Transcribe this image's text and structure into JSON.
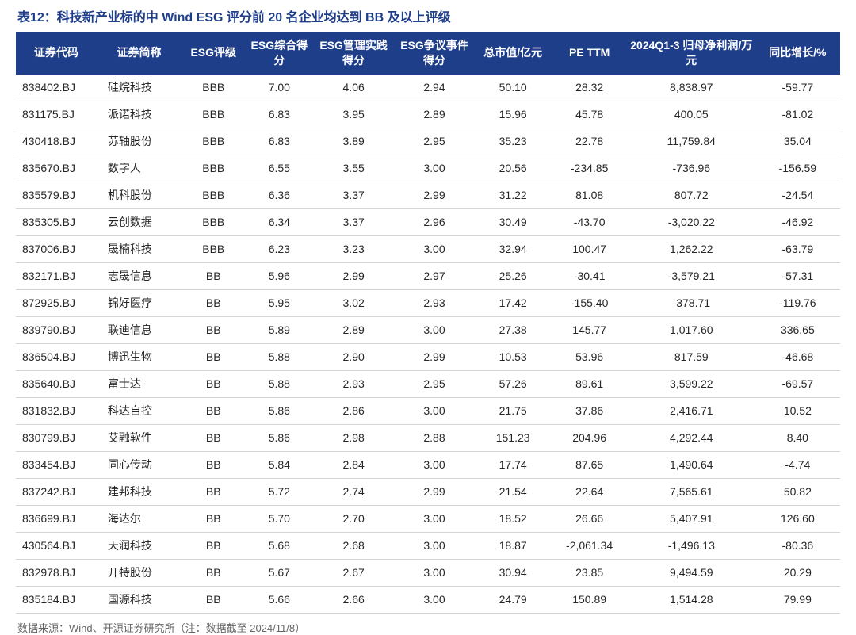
{
  "title": "表12：科技新产业标的中 Wind ESG 评分前 20 名企业均达到 BB 及以上评级",
  "footer": "数据来源：Wind、开源证券研究所（注：数据截至 2024/11/8）",
  "colors": {
    "header_bg": "#1f3e8a",
    "header_text": "#ffffff",
    "title_text": "#1f3e8a",
    "body_text": "#262626",
    "row_border": "#d4d4d4",
    "footer_text": "#666666",
    "background": "#ffffff"
  },
  "typography": {
    "title_fontsize": 16,
    "header_fontsize": 14,
    "cell_fontsize": 14,
    "footer_fontsize": 13,
    "font_family": "Microsoft YaHei"
  },
  "table": {
    "type": "table",
    "columns": [
      {
        "key": "code",
        "label": "证券代码",
        "align": "left"
      },
      {
        "key": "name",
        "label": "证券简称",
        "align": "left"
      },
      {
        "key": "rating",
        "label": "ESG评级",
        "align": "center"
      },
      {
        "key": "score",
        "label": "ESG综合得分",
        "align": "center"
      },
      {
        "key": "mgmt",
        "label": "ESG管理实践得分",
        "align": "center"
      },
      {
        "key": "disp",
        "label": "ESG争议事件得分",
        "align": "center"
      },
      {
        "key": "mcap",
        "label": "总市值/亿元",
        "align": "center"
      },
      {
        "key": "pe",
        "label": "PE TTM",
        "align": "center"
      },
      {
        "key": "profit",
        "label": "2024Q1-3 归母净利润/万元",
        "align": "center"
      },
      {
        "key": "yoy",
        "label": "同比增长/%",
        "align": "center"
      }
    ],
    "rows": [
      [
        "838402.BJ",
        "硅烷科技",
        "BBB",
        "7.00",
        "4.06",
        "2.94",
        "50.10",
        "28.32",
        "8,838.97",
        "-59.77"
      ],
      [
        "831175.BJ",
        "派诺科技",
        "BBB",
        "6.83",
        "3.95",
        "2.89",
        "15.96",
        "45.78",
        "400.05",
        "-81.02"
      ],
      [
        "430418.BJ",
        "苏轴股份",
        "BBB",
        "6.83",
        "3.89",
        "2.95",
        "35.23",
        "22.78",
        "11,759.84",
        "35.04"
      ],
      [
        "835670.BJ",
        "数字人",
        "BBB",
        "6.55",
        "3.55",
        "3.00",
        "20.56",
        "-234.85",
        "-736.96",
        "-156.59"
      ],
      [
        "835579.BJ",
        "机科股份",
        "BBB",
        "6.36",
        "3.37",
        "2.99",
        "31.22",
        "81.08",
        "807.72",
        "-24.54"
      ],
      [
        "835305.BJ",
        "云创数据",
        "BBB",
        "6.34",
        "3.37",
        "2.96",
        "30.49",
        "-43.70",
        "-3,020.22",
        "-46.92"
      ],
      [
        "837006.BJ",
        "晟楠科技",
        "BBB",
        "6.23",
        "3.23",
        "3.00",
        "32.94",
        "100.47",
        "1,262.22",
        "-63.79"
      ],
      [
        "832171.BJ",
        "志晟信息",
        "BB",
        "5.96",
        "2.99",
        "2.97",
        "25.26",
        "-30.41",
        "-3,579.21",
        "-57.31"
      ],
      [
        "872925.BJ",
        "锦好医疗",
        "BB",
        "5.95",
        "3.02",
        "2.93",
        "17.42",
        "-155.40",
        "-378.71",
        "-119.76"
      ],
      [
        "839790.BJ",
        "联迪信息",
        "BB",
        "5.89",
        "2.89",
        "3.00",
        "27.38",
        "145.77",
        "1,017.60",
        "336.65"
      ],
      [
        "836504.BJ",
        "博迅生物",
        "BB",
        "5.88",
        "2.90",
        "2.99",
        "10.53",
        "53.96",
        "817.59",
        "-46.68"
      ],
      [
        "835640.BJ",
        "富士达",
        "BB",
        "5.88",
        "2.93",
        "2.95",
        "57.26",
        "89.61",
        "3,599.22",
        "-69.57"
      ],
      [
        "831832.BJ",
        "科达自控",
        "BB",
        "5.86",
        "2.86",
        "3.00",
        "21.75",
        "37.86",
        "2,416.71",
        "10.52"
      ],
      [
        "830799.BJ",
        "艾融软件",
        "BB",
        "5.86",
        "2.98",
        "2.88",
        "151.23",
        "204.96",
        "4,292.44",
        "8.40"
      ],
      [
        "833454.BJ",
        "同心传动",
        "BB",
        "5.84",
        "2.84",
        "3.00",
        "17.74",
        "87.65",
        "1,490.64",
        "-4.74"
      ],
      [
        "837242.BJ",
        "建邦科技",
        "BB",
        "5.72",
        "2.74",
        "2.99",
        "21.54",
        "22.64",
        "7,565.61",
        "50.82"
      ],
      [
        "836699.BJ",
        "海达尔",
        "BB",
        "5.70",
        "2.70",
        "3.00",
        "18.52",
        "26.66",
        "5,407.91",
        "126.60"
      ],
      [
        "430564.BJ",
        "天润科技",
        "BB",
        "5.68",
        "2.68",
        "3.00",
        "18.87",
        "-2,061.34",
        "-1,496.13",
        "-80.36"
      ],
      [
        "832978.BJ",
        "开特股份",
        "BB",
        "5.67",
        "2.67",
        "3.00",
        "30.94",
        "23.85",
        "9,494.59",
        "20.29"
      ],
      [
        "835184.BJ",
        "国源科技",
        "BB",
        "5.66",
        "2.66",
        "3.00",
        "24.79",
        "150.89",
        "1,514.28",
        "79.99"
      ]
    ]
  }
}
